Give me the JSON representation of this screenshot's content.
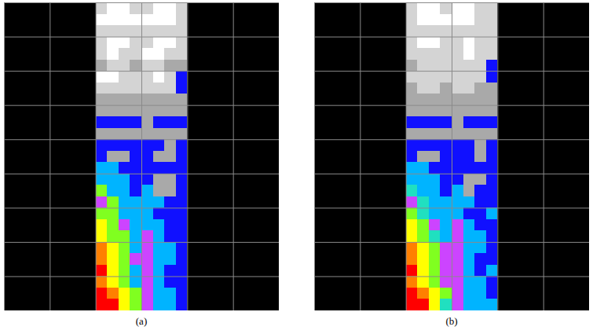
{
  "chart_data": [
    {
      "type": "heatmap",
      "title": "(a)",
      "tick_labels": false,
      "grid": true,
      "tiles": {
        "columns": 6,
        "rows": 9,
        "image_columns": [
          2,
          3
        ]
      },
      "levels": [
        0,
        1,
        2,
        3,
        4,
        5,
        6,
        7,
        8,
        9,
        10
      ],
      "colors": [
        "#ffffff",
        "#d4d4d4",
        "#a9a9a9",
        "#1010ff",
        "#00b4ff",
        "#cc44ff",
        "#20e0c0",
        "#80ff20",
        "#ffff00",
        "#ff8000",
        "#ff0000"
      ],
      "cells": [
        [
          1,
          0,
          0,
          1,
          1,
          0,
          0,
          1
        ],
        [
          0,
          0,
          0,
          0,
          0,
          0,
          0,
          1
        ],
        [
          1,
          1,
          1,
          1,
          1,
          1,
          1,
          1
        ],
        [
          1,
          0,
          0,
          1,
          1,
          0,
          0,
          1
        ],
        [
          1,
          0,
          1,
          1,
          0,
          0,
          1,
          1
        ],
        [
          2,
          1,
          1,
          2,
          1,
          1,
          2,
          2
        ],
        [
          0,
          0,
          1,
          1,
          1,
          0,
          1,
          3
        ],
        [
          1,
          1,
          1,
          1,
          1,
          1,
          1,
          3
        ],
        [
          2,
          2,
          2,
          2,
          2,
          2,
          2,
          2
        ],
        [
          2,
          2,
          2,
          2,
          2,
          2,
          2,
          2
        ],
        [
          3,
          3,
          3,
          3,
          2,
          3,
          3,
          3
        ],
        [
          2,
          2,
          2,
          2,
          2,
          2,
          2,
          2
        ],
        [
          3,
          3,
          3,
          3,
          3,
          3,
          2,
          3
        ],
        [
          3,
          2,
          2,
          3,
          3,
          2,
          2,
          3
        ],
        [
          4,
          4,
          3,
          3,
          3,
          3,
          3,
          3
        ],
        [
          4,
          4,
          4,
          3,
          3,
          2,
          2,
          3
        ],
        [
          7,
          4,
          4,
          3,
          4,
          2,
          2,
          3
        ],
        [
          5,
          7,
          4,
          4,
          4,
          4,
          3,
          3
        ],
        [
          7,
          7,
          4,
          4,
          4,
          3,
          3,
          3
        ],
        [
          8,
          7,
          5,
          4,
          4,
          4,
          3,
          3
        ],
        [
          8,
          7,
          7,
          4,
          5,
          4,
          3,
          3
        ],
        [
          9,
          8,
          7,
          4,
          5,
          4,
          4,
          3
        ],
        [
          9,
          8,
          7,
          5,
          5,
          4,
          4,
          3
        ],
        [
          10,
          8,
          7,
          4,
          5,
          4,
          3,
          3
        ],
        [
          9,
          8,
          7,
          4,
          5,
          4,
          3,
          3
        ],
        [
          10,
          9,
          8,
          7,
          5,
          4,
          4,
          3
        ],
        [
          10,
          10,
          8,
          7,
          5,
          4,
          4,
          3
        ]
      ]
    },
    {
      "type": "heatmap",
      "title": "(b)",
      "tick_labels": false,
      "grid": true,
      "tiles": {
        "columns": 6,
        "rows": 9,
        "image_columns": [
          2,
          3
        ]
      },
      "levels": [
        0,
        1,
        2,
        3,
        4,
        5,
        6,
        7,
        8,
        9,
        10
      ],
      "colors": [
        "#ffffff",
        "#d4d4d4",
        "#a9a9a9",
        "#1010ff",
        "#00b4ff",
        "#cc44ff",
        "#20e0c0",
        "#80ff20",
        "#ffff00",
        "#ff8000",
        "#ff0000"
      ],
      "cells": [
        [
          1,
          0,
          0,
          1,
          0,
          0,
          1,
          1
        ],
        [
          1,
          0,
          0,
          0,
          0,
          0,
          1,
          1
        ],
        [
          1,
          1,
          1,
          1,
          1,
          1,
          1,
          1
        ],
        [
          1,
          0,
          0,
          1,
          1,
          0,
          1,
          1
        ],
        [
          1,
          1,
          1,
          1,
          1,
          0,
          1,
          1
        ],
        [
          2,
          1,
          1,
          1,
          1,
          1,
          1,
          3
        ],
        [
          1,
          1,
          1,
          1,
          1,
          1,
          1,
          3
        ],
        [
          2,
          1,
          1,
          2,
          1,
          1,
          2,
          2
        ],
        [
          2,
          2,
          2,
          2,
          2,
          2,
          2,
          2
        ],
        [
          2,
          2,
          2,
          2,
          2,
          2,
          2,
          2
        ],
        [
          3,
          3,
          3,
          3,
          2,
          3,
          3,
          3
        ],
        [
          2,
          2,
          2,
          2,
          2,
          2,
          2,
          2
        ],
        [
          3,
          3,
          3,
          3,
          3,
          3,
          2,
          3
        ],
        [
          3,
          2,
          2,
          3,
          3,
          3,
          2,
          3
        ],
        [
          4,
          4,
          3,
          3,
          3,
          3,
          3,
          3
        ],
        [
          4,
          4,
          4,
          3,
          3,
          2,
          2,
          3
        ],
        [
          6,
          4,
          4,
          3,
          4,
          2,
          3,
          3
        ],
        [
          5,
          6,
          4,
          4,
          4,
          4,
          3,
          3
        ],
        [
          7,
          6,
          4,
          4,
          4,
          3,
          3,
          4
        ],
        [
          8,
          7,
          5,
          4,
          5,
          4,
          3,
          3
        ],
        [
          8,
          7,
          6,
          4,
          5,
          4,
          4,
          3
        ],
        [
          9,
          8,
          7,
          5,
          5,
          4,
          4,
          3
        ],
        [
          9,
          8,
          7,
          5,
          5,
          4,
          3,
          3
        ],
        [
          10,
          8,
          7,
          5,
          5,
          4,
          3,
          4
        ],
        [
          9,
          8,
          7,
          5,
          5,
          4,
          4,
          3
        ],
        [
          10,
          9,
          8,
          7,
          5,
          4,
          4,
          3
        ],
        [
          10,
          10,
          8,
          6,
          5,
          4,
          4,
          4
        ]
      ]
    }
  ]
}
